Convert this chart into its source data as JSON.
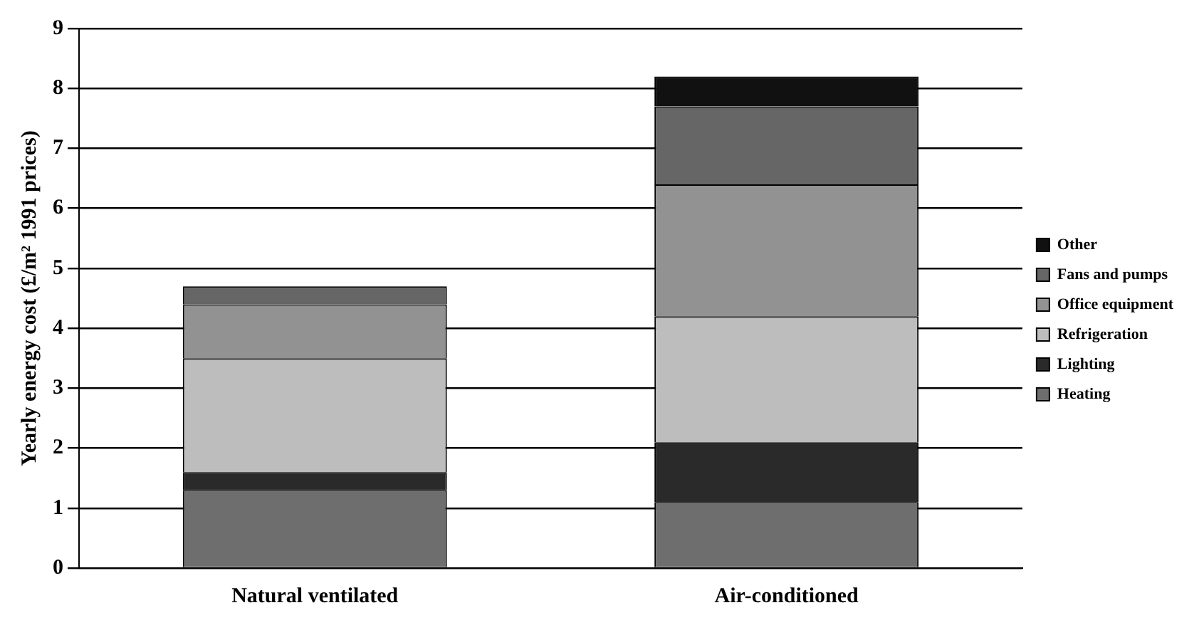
{
  "chart_data": {
    "type": "bar",
    "stacked": true,
    "ylabel": "Yearly energy cost (£/m² 1991 prices)",
    "categories": [
      "Natural ventilated",
      "Air-conditioned"
    ],
    "series": [
      {
        "name": "Heating",
        "color": "#6e6e6e",
        "values": [
          1.3,
          1.1
        ]
      },
      {
        "name": "Lighting",
        "color": "#2a2a2a",
        "values": [
          0.3,
          1.0
        ]
      },
      {
        "name": "Refrigeration",
        "color": "#bdbdbd",
        "values": [
          1.9,
          2.1
        ]
      },
      {
        "name": "Office equipment",
        "color": "#929292",
        "values": [
          0.9,
          2.2
        ]
      },
      {
        "name": "Fans and pumps",
        "color": "#666666",
        "values": [
          0.3,
          1.3
        ]
      },
      {
        "name": "Other",
        "color": "#111111",
        "values": [
          0,
          0.5
        ]
      }
    ],
    "ylim": [
      0,
      9
    ],
    "yticks": [
      0,
      1,
      2,
      3,
      4,
      5,
      6,
      7,
      8,
      9
    ],
    "grid": "y",
    "legend": "right"
  }
}
